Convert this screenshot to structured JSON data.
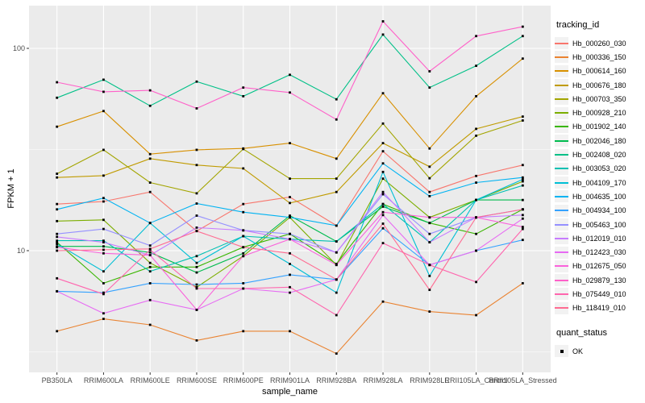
{
  "chart_data": {
    "type": "line",
    "title": "",
    "xlabel": "sample_name",
    "ylabel": "FPKM + 1",
    "y_scale": "log10",
    "y_tick_labels": [
      "100",
      "10"
    ],
    "y_ticks": [
      100,
      10
    ],
    "y_minor_gridlines": [
      31.62,
      3.162
    ],
    "ylim": [
      2.5,
      164
    ],
    "legend_position": "right",
    "point_shape": "black-square",
    "grid": "on",
    "categories": [
      "PB350LA",
      "RRIM600LA",
      "RRIM600LE",
      "RRIM600SE",
      "RRIM600PE",
      "RRIM901LA",
      "RRIM928BA",
      "RRIM928LA",
      "RRIM928LE",
      "RRII105LA_Control",
      "RRII105LA_Stressed"
    ],
    "series": [
      {
        "name": "Hb_000260_030",
        "color": "#F8766D",
        "values": [
          17.0,
          17.5,
          19.5,
          12.5,
          17.0,
          18.4,
          13.3,
          31.0,
          19.5,
          23.4,
          26.5
        ]
      },
      {
        "name": "Hb_000336_150",
        "color": "#EA8331",
        "values": [
          4.0,
          4.6,
          4.3,
          3.6,
          4.0,
          4.0,
          3.1,
          5.6,
          5.0,
          4.8,
          6.9
        ]
      },
      {
        "name": "Hb_000614_160",
        "color": "#D89000",
        "values": [
          41,
          49,
          30,
          31.5,
          32,
          34,
          28.5,
          60,
          32,
          58,
          89
        ]
      },
      {
        "name": "Hb_000676_180",
        "color": "#C09B00",
        "values": [
          23,
          23.5,
          28.5,
          26.5,
          25.5,
          17.2,
          19.5,
          34,
          26,
          40,
          46
        ]
      },
      {
        "name": "Hb_000703_350",
        "color": "#A3A500",
        "values": [
          24,
          31.5,
          21.7,
          19.2,
          31.8,
          22.7,
          22.7,
          42.5,
          22.8,
          37,
          44
        ]
      },
      {
        "name": "Hb_000928_210",
        "color": "#7CAE00",
        "values": [
          14.0,
          14.2,
          8.7,
          6.6,
          9.4,
          14.6,
          8.5,
          22.7,
          14.6,
          17.8,
          22.0
        ]
      },
      {
        "name": "Hb_001902_140",
        "color": "#39B600",
        "values": [
          11.0,
          6.9,
          8.3,
          8.3,
          10.4,
          12.1,
          8.6,
          17.0,
          13.7,
          12.1,
          16.0
        ]
      },
      {
        "name": "Hb_002046_180",
        "color": "#00BB4E",
        "values": [
          10.5,
          10.5,
          9.8,
          7.8,
          9.7,
          14.9,
          11.1,
          16.5,
          13.7,
          17.8,
          17.8
        ]
      },
      {
        "name": "Hb_002408_020",
        "color": "#00C087",
        "values": [
          57,
          70,
          52,
          68.5,
          58,
          74,
          56,
          117,
          64,
          82,
          115
        ]
      },
      {
        "name": "Hb_003053_020",
        "color": "#00C0B2",
        "values": [
          11.2,
          11.2,
          7.9,
          9.4,
          11.8,
          11.4,
          11.1,
          17.0,
          11.0,
          17.8,
          21.0
        ]
      },
      {
        "name": "Hb_004109_170",
        "color": "#00BFD5",
        "values": [
          10.8,
          7.9,
          13.7,
          8.7,
          11.8,
          8.6,
          6.2,
          24.5,
          7.5,
          17.8,
          22.5
        ]
      },
      {
        "name": "Hb_004635_100",
        "color": "#00B3F2",
        "values": [
          16.0,
          18.2,
          13.7,
          17.1,
          15.5,
          14.6,
          13.3,
          27.0,
          18.6,
          21.7,
          23.0
        ]
      },
      {
        "name": "Hb_004934_100",
        "color": "#35A2FF",
        "values": [
          6.3,
          6.2,
          6.9,
          6.8,
          6.9,
          7.6,
          7.2,
          12.9,
          8.5,
          10.0,
          11.3
        ]
      },
      {
        "name": "Hb_005463_100",
        "color": "#9590FF",
        "values": [
          12.1,
          12.8,
          10.6,
          14.9,
          12.6,
          12.1,
          9.8,
          19.0,
          12.1,
          14.6,
          16.0
        ]
      },
      {
        "name": "Hb_012019_010",
        "color": "#C77CFF",
        "values": [
          11.7,
          11.0,
          9.5,
          13.0,
          12.6,
          11.4,
          9.8,
          19.5,
          11.0,
          14.6,
          15.0
        ]
      },
      {
        "name": "Hb_012423_030",
        "color": "#E76BF3",
        "values": [
          6.3,
          4.9,
          5.7,
          5.1,
          6.5,
          6.2,
          7.2,
          15.0,
          8.5,
          10.0,
          14.4
        ]
      },
      {
        "name": "Hb_012675_050",
        "color": "#FA62DB",
        "values": [
          10.4,
          9.7,
          9.5,
          5.1,
          9.4,
          11.4,
          8.5,
          15.5,
          14.6,
          14.6,
          13.1
        ]
      },
      {
        "name": "Hb_029879_130",
        "color": "#FF61C9",
        "values": [
          68,
          61,
          62,
          50.5,
          64,
          60.5,
          44.5,
          136,
          77,
          115,
          128
        ]
      },
      {
        "name": "Hb_075449_010",
        "color": "#FF65AE",
        "values": [
          7.3,
          6.1,
          10.1,
          6.5,
          6.5,
          6.6,
          4.8,
          10.9,
          8.5,
          7.0,
          12.8
        ]
      },
      {
        "name": "Hb_118419_010",
        "color": "#FF6C92",
        "values": [
          10.0,
          10.1,
          10.2,
          12.5,
          10.4,
          9.7,
          7.2,
          13.6,
          6.4,
          14.6,
          16.0
        ]
      }
    ]
  },
  "legend": {
    "tracking_title": "tracking_id",
    "quant_title": "quant_status",
    "quant_items": [
      {
        "label": "OK",
        "marker": "black-square"
      }
    ]
  },
  "style": {
    "panel_bg": "#EBEBEB",
    "grid_color": "#FFFFFF",
    "tick_label_color": "#4D4D4D",
    "axis_title_color": "#000000",
    "point_color": "#000000",
    "legend_key_bg": "#F2F2F2"
  }
}
